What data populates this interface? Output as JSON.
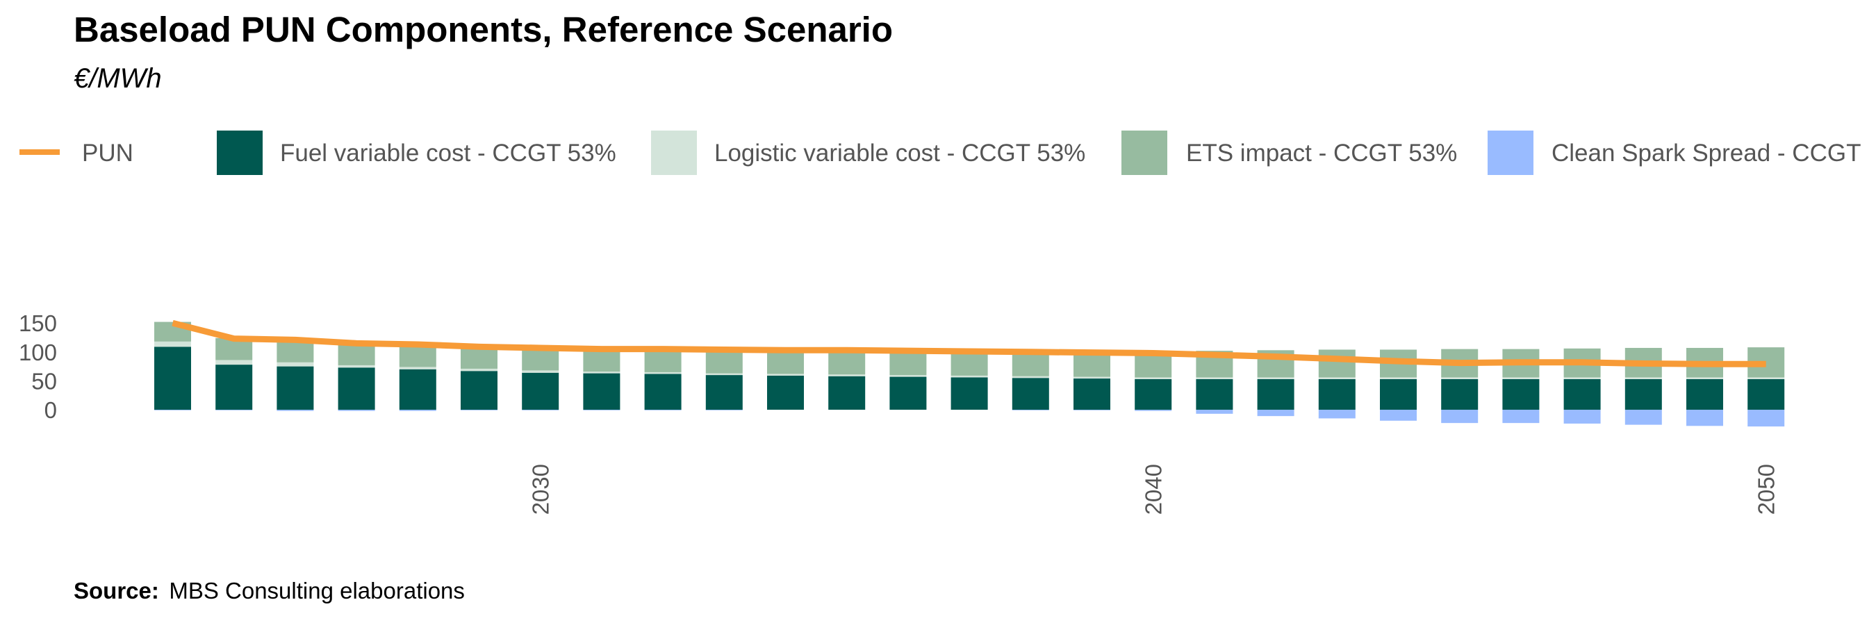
{
  "chart_data": {
    "type": "bar",
    "title": "Baseload PUN Components, Reference Scenario",
    "subtitle": "€/MWh",
    "xlabel": "",
    "ylabel": "",
    "x": [
      2024,
      2025,
      2026,
      2027,
      2028,
      2029,
      2030,
      2031,
      2032,
      2033,
      2034,
      2035,
      2036,
      2037,
      2038,
      2039,
      2040,
      2041,
      2042,
      2043,
      2044,
      2045,
      2046,
      2047,
      2048,
      2049,
      2050
    ],
    "x_ticks": [
      "2030",
      "2040",
      "2050"
    ],
    "y_ticks": [
      "150",
      "100",
      "50",
      "0"
    ],
    "ylim": [
      -30,
      155
    ],
    "stacked": true,
    "grid": false,
    "legend_position": "top",
    "series": [
      {
        "name": "Fuel variable cost - CCGT 53%",
        "kind": "bar",
        "color": "#005850",
        "values": [
          109,
          78,
          75,
          73,
          70,
          67,
          64,
          63,
          62,
          60,
          59,
          58,
          57,
          56,
          55,
          54,
          53,
          53,
          53,
          53,
          53,
          53,
          53,
          53,
          53,
          53,
          53
        ]
      },
      {
        "name": "Logistic variable cost - CCGT 53%",
        "kind": "bar",
        "color": "#d3e4da",
        "values": [
          9,
          8,
          7,
          4,
          4,
          4,
          4,
          3,
          3,
          3,
          3,
          3,
          3,
          3,
          3,
          3,
          3,
          3,
          3,
          3,
          3,
          3,
          3,
          3,
          3,
          3,
          3
        ]
      },
      {
        "name": "ETS impact - CCGT 53%",
        "kind": "bar",
        "color": "#97bba0",
        "values": [
          34,
          38,
          39,
          38,
          39,
          37,
          36,
          37,
          37,
          39,
          41,
          41,
          41,
          42,
          42,
          43,
          44,
          46,
          47,
          48,
          48,
          49,
          49,
          50,
          51,
          51,
          52
        ]
      },
      {
        "name": "Clean Spark Spread - CCGT",
        "kind": "bar",
        "color": "#99bbff",
        "values": [
          -1,
          -1,
          -2,
          -2,
          -2,
          -1,
          -1,
          -1,
          -1,
          -1,
          0,
          0,
          0,
          0,
          -1,
          -1,
          -2,
          -7,
          -11,
          -15,
          -19,
          -23,
          -23,
          -24,
          -26,
          -28,
          -29
        ]
      },
      {
        "name": "PUN",
        "kind": "line",
        "color": "#f79b37",
        "values": [
          150,
          123,
          121,
          115,
          113,
          109,
          107,
          105,
          105,
          104,
          103,
          103,
          102,
          101,
          100,
          99,
          98,
          95,
          92,
          88,
          84,
          81,
          82,
          82,
          80,
          79,
          79
        ]
      }
    ]
  },
  "source": {
    "label": "Source:",
    "text": "MBS Consulting elaborations"
  }
}
